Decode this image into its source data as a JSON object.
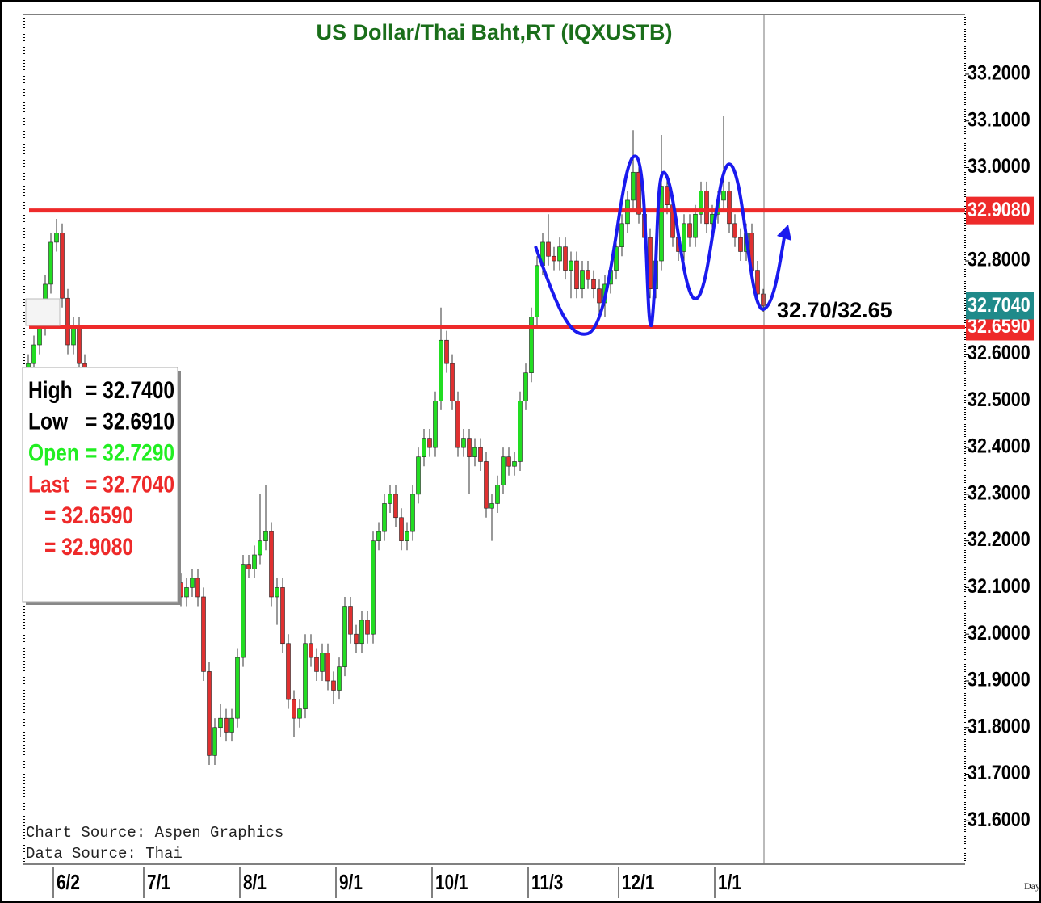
{
  "chart_data": {
    "type": "candlestick",
    "title": "US Dollar/Thai Baht,RT (IQXUSTB)",
    "categories": [
      null,
      null,
      null,
      null,
      null,
      "6/2",
      null,
      null,
      null,
      null,
      null,
      null,
      null,
      null,
      null,
      null,
      null,
      null,
      null,
      null,
      null,
      "7/1",
      null,
      null,
      null,
      null,
      null,
      null,
      null,
      null,
      null,
      null,
      null,
      null,
      null,
      null,
      null,
      null,
      "8/1",
      null,
      null,
      null,
      null,
      null,
      null,
      null,
      null,
      null,
      null,
      null,
      null,
      null,
      null,
      null,
      null,
      "9/1",
      null,
      null,
      null,
      null,
      null,
      null,
      null,
      null,
      null,
      null,
      null,
      null,
      null,
      null,
      null,
      null,
      "10/1",
      null,
      null,
      null,
      null,
      null,
      null,
      null,
      null,
      null,
      null,
      null,
      null,
      null,
      null,
      null,
      null,
      "11/3",
      null,
      null,
      null,
      null,
      null,
      null,
      null,
      null,
      null,
      null,
      null,
      null,
      null,
      null,
      null,
      "12/1",
      null,
      null,
      null,
      null,
      null,
      null,
      null,
      null,
      null,
      null,
      null,
      null,
      null,
      null,
      null,
      null,
      "1/1",
      null,
      null,
      null,
      null,
      null,
      null,
      null,
      null
    ],
    "open": [
      32.55,
      32.58,
      32.62,
      32.66,
      32.75,
      32.84,
      32.86,
      32.72,
      32.62,
      32.66,
      32.58,
      32.52,
      32.48,
      32.42,
      32.45,
      32.38,
      32.32,
      32.35,
      32.28,
      32.22,
      32.25,
      32.18,
      32.15,
      32.12,
      32.14,
      32.1,
      32.13,
      32.11,
      32.08,
      32.1,
      32.12,
      32.08,
      31.92,
      31.74,
      31.8,
      31.82,
      31.79,
      31.82,
      31.95,
      32.15,
      32.14,
      32.17,
      32.2,
      32.22,
      32.08,
      32.1,
      31.98,
      31.86,
      31.82,
      31.84,
      31.98,
      31.95,
      31.92,
      31.96,
      31.9,
      31.88,
      31.93,
      32.06,
      32.0,
      31.98,
      32.03,
      32.0,
      32.2,
      32.22,
      32.28,
      32.3,
      32.25,
      32.2,
      32.22,
      32.3,
      32.38,
      32.42,
      32.4,
      32.5,
      32.63,
      32.58,
      32.5,
      32.4,
      32.42,
      32.38,
      32.4,
      32.37,
      32.27,
      32.28,
      32.32,
      32.38,
      32.36,
      32.37,
      32.5,
      32.56,
      32.68,
      32.79,
      32.84,
      32.81,
      32.8,
      32.83,
      32.78,
      32.8,
      32.74,
      32.78,
      32.76,
      32.74,
      32.71,
      32.75,
      32.78,
      32.83,
      32.88,
      32.93,
      32.99,
      32.9,
      32.85,
      32.74,
      32.8,
      32.96,
      32.92,
      32.85,
      32.82,
      32.88,
      32.85,
      32.9,
      32.95,
      32.88,
      32.9,
      32.93,
      32.95,
      32.88,
      32.85,
      32.82,
      32.86,
      32.78,
      32.729
    ],
    "high": [
      32.6,
      32.64,
      32.68,
      32.77,
      32.86,
      32.89,
      32.88,
      32.74,
      32.68,
      32.68,
      32.6,
      32.54,
      32.5,
      32.47,
      32.47,
      32.4,
      32.37,
      32.37,
      32.3,
      32.27,
      32.27,
      32.2,
      32.17,
      32.16,
      32.16,
      32.15,
      32.15,
      32.13,
      32.12,
      32.14,
      32.14,
      32.1,
      31.94,
      31.82,
      31.85,
      31.84,
      31.84,
      31.97,
      32.17,
      32.17,
      32.19,
      32.3,
      32.32,
      32.24,
      32.12,
      32.12,
      32.0,
      31.88,
      31.86,
      32.0,
      32.0,
      31.97,
      31.98,
      31.98,
      31.92,
      31.95,
      32.08,
      32.08,
      32.02,
      32.05,
      32.05,
      32.22,
      32.24,
      32.3,
      32.32,
      32.32,
      32.27,
      32.24,
      32.32,
      32.4,
      32.44,
      32.44,
      32.52,
      32.7,
      32.65,
      32.6,
      32.52,
      32.44,
      32.44,
      32.42,
      32.42,
      32.39,
      32.3,
      32.34,
      32.4,
      32.4,
      32.39,
      32.52,
      32.58,
      32.7,
      32.81,
      32.86,
      32.9,
      32.83,
      32.85,
      32.85,
      32.82,
      32.82,
      32.8,
      32.8,
      32.78,
      32.76,
      32.77,
      32.8,
      32.85,
      32.9,
      32.95,
      33.08,
      33.01,
      32.92,
      32.87,
      32.82,
      33.07,
      32.98,
      32.94,
      32.87,
      32.9,
      32.9,
      32.92,
      32.97,
      32.97,
      32.92,
      32.95,
      33.11,
      32.97,
      32.9,
      32.87,
      32.88,
      32.88,
      32.8,
      32.74
    ],
    "low": [
      32.53,
      32.56,
      32.6,
      32.64,
      32.73,
      32.82,
      32.7,
      32.6,
      32.6,
      32.56,
      32.5,
      32.46,
      32.4,
      32.4,
      32.36,
      32.3,
      32.3,
      32.26,
      32.2,
      32.2,
      32.16,
      32.13,
      32.1,
      32.1,
      32.08,
      32.08,
      32.09,
      32.06,
      32.06,
      32.08,
      32.06,
      31.9,
      31.72,
      31.72,
      31.78,
      31.77,
      31.77,
      31.8,
      31.93,
      32.12,
      32.12,
      32.15,
      32.18,
      32.06,
      32.02,
      31.96,
      31.84,
      31.78,
      31.8,
      31.82,
      31.93,
      31.9,
      31.9,
      31.88,
      31.85,
      31.86,
      31.91,
      31.98,
      31.96,
      31.96,
      31.98,
      31.98,
      32.18,
      32.2,
      32.26,
      32.23,
      32.18,
      32.18,
      32.2,
      32.28,
      32.36,
      32.38,
      32.38,
      32.48,
      32.56,
      32.48,
      32.38,
      32.38,
      32.3,
      32.36,
      32.35,
      32.25,
      32.2,
      32.26,
      32.3,
      32.34,
      32.34,
      32.35,
      32.48,
      32.54,
      32.66,
      32.77,
      32.79,
      32.78,
      32.78,
      32.76,
      32.72,
      32.72,
      32.72,
      32.74,
      32.72,
      32.68,
      32.68,
      32.73,
      32.76,
      32.81,
      32.86,
      32.91,
      32.88,
      32.83,
      32.72,
      32.72,
      32.78,
      32.9,
      32.83,
      32.8,
      32.8,
      32.83,
      32.83,
      32.88,
      32.86,
      32.86,
      32.88,
      32.91,
      32.86,
      32.83,
      32.8,
      32.8,
      32.76,
      32.71,
      32.691
    ],
    "close": [
      32.58,
      32.62,
      32.66,
      32.75,
      32.84,
      32.86,
      32.72,
      32.62,
      32.66,
      32.58,
      32.52,
      32.48,
      32.42,
      32.45,
      32.38,
      32.32,
      32.35,
      32.28,
      32.22,
      32.25,
      32.18,
      32.15,
      32.12,
      32.14,
      32.1,
      32.13,
      32.11,
      32.08,
      32.1,
      32.12,
      32.08,
      31.92,
      31.74,
      31.8,
      31.82,
      31.79,
      31.82,
      31.95,
      32.15,
      32.14,
      32.17,
      32.2,
      32.22,
      32.08,
      32.1,
      31.98,
      31.86,
      31.82,
      31.84,
      31.98,
      31.95,
      31.92,
      31.96,
      31.9,
      31.88,
      31.93,
      32.06,
      32.0,
      31.98,
      32.03,
      32.0,
      32.2,
      32.22,
      32.28,
      32.3,
      32.25,
      32.2,
      32.22,
      32.3,
      32.38,
      32.42,
      32.4,
      32.5,
      32.63,
      32.58,
      32.5,
      32.4,
      32.42,
      32.38,
      32.4,
      32.37,
      32.27,
      32.28,
      32.32,
      32.38,
      32.36,
      32.37,
      32.5,
      32.56,
      32.68,
      32.79,
      32.84,
      32.81,
      32.8,
      32.83,
      32.78,
      32.8,
      32.74,
      32.78,
      32.76,
      32.74,
      32.71,
      32.75,
      32.78,
      32.83,
      32.88,
      32.93,
      32.99,
      32.9,
      32.85,
      32.74,
      32.8,
      32.96,
      32.92,
      32.85,
      32.82,
      32.88,
      32.85,
      32.9,
      32.95,
      32.88,
      32.9,
      32.93,
      32.95,
      32.88,
      32.85,
      32.82,
      32.86,
      32.78,
      32.729,
      32.704
    ],
    "up_color": "#22dd22",
    "down_color": "#e03030",
    "ylim": [
      31.507,
      33.328
    ],
    "yticks": [
      {
        "value": 31.6,
        "label": "31.6000"
      },
      {
        "value": 31.7,
        "label": "31.7000"
      },
      {
        "value": 31.8,
        "label": "31.8000"
      },
      {
        "value": 31.9,
        "label": "31.9000"
      },
      {
        "value": 32.0,
        "label": "32.0000"
      },
      {
        "value": 32.1,
        "label": "32.1000"
      },
      {
        "value": 32.2,
        "label": "32.2000"
      },
      {
        "value": 32.3,
        "label": "32.3000"
      },
      {
        "value": 32.4,
        "label": "32.4000"
      },
      {
        "value": 32.5,
        "label": "32.5000"
      },
      {
        "value": 32.6,
        "label": "32.6000"
      },
      {
        "value": 32.7,
        "label": "32.7000"
      },
      {
        "value": 32.8,
        "label": "32.8000"
      },
      {
        "value": 32.9,
        "label": "32.9000"
      },
      {
        "value": 33.0,
        "label": "33.0000"
      },
      {
        "value": 33.1,
        "label": "33.1000"
      },
      {
        "value": 33.2,
        "label": "33.2000"
      }
    ],
    "hlines": [
      {
        "value": 32.908,
        "label": "32.9080",
        "color": "#ee2a2a"
      },
      {
        "value": 32.659,
        "label": "32.6590",
        "color": "#ee2a2a"
      }
    ],
    "last_price": {
      "value": 32.704,
      "label": "32.7040",
      "color": "#1f8a8a"
    },
    "info_box": [
      {
        "name": "High",
        "value": 32.74,
        "label": "= 32.7400",
        "color": "#000000"
      },
      {
        "name": "Low",
        "value": 32.691,
        "label": "= 32.6910",
        "color": "#000000"
      },
      {
        "name": "Open",
        "value": 32.729,
        "label": "= 32.7290",
        "color": "#22ee22"
      },
      {
        "name": "Last",
        "value": 32.704,
        "label": "= 32.7040",
        "color": "#ee2a2a"
      },
      {
        "value": 32.659,
        "label": "= 32.6590",
        "color": "#ee2a2a"
      },
      {
        "value": 32.908,
        "label": "= 32.9080",
        "color": "#ee2a2a"
      }
    ],
    "annotation": "32.70/32.65",
    "sources": [
      "Chart Source: Aspen Graphics",
      "Data Source: Thai"
    ],
    "period": "Day"
  }
}
